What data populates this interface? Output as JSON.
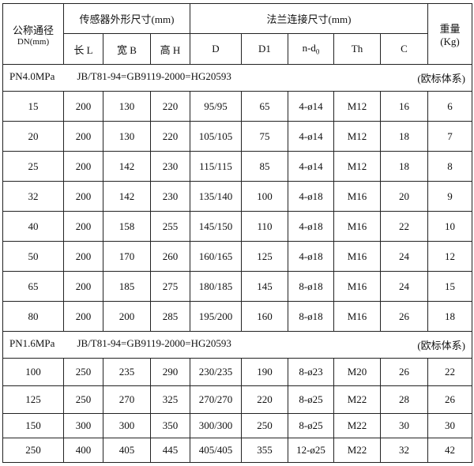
{
  "header": {
    "dn_label": "公称通径",
    "dn_unit": "DN(mm)",
    "sensor_group": "传感器外形尺寸(mm)",
    "flange_group": "法兰连接尺寸(mm)",
    "weight_label": "重量",
    "weight_unit": "(Kg)",
    "columns": [
      "长 L",
      "宽 B",
      "高 H",
      "D",
      "D1",
      "n-d",
      "Th",
      "C"
    ],
    "nd_sub": "0"
  },
  "sections": [
    {
      "pressure": "PN4.0MPa",
      "standard": "JB/T81-94=GB9119-2000=HG20593",
      "system": "(欧标体系)",
      "rows": [
        [
          "15",
          "200",
          "130",
          "220",
          "95/95",
          "65",
          "4-ø14",
          "M12",
          "16",
          "6"
        ],
        [
          "20",
          "200",
          "130",
          "220",
          "105/105",
          "75",
          "4-ø14",
          "M12",
          "18",
          "7"
        ],
        [
          "25",
          "200",
          "142",
          "230",
          "115/115",
          "85",
          "4-ø14",
          "M12",
          "18",
          "8"
        ],
        [
          "32",
          "200",
          "142",
          "230",
          "135/140",
          "100",
          "4-ø18",
          "M16",
          "20",
          "9"
        ],
        [
          "40",
          "200",
          "158",
          "255",
          "145/150",
          "110",
          "4-ø18",
          "M16",
          "22",
          "10"
        ],
        [
          "50",
          "200",
          "170",
          "260",
          "160/165",
          "125",
          "4-ø18",
          "M16",
          "24",
          "12"
        ],
        [
          "65",
          "200",
          "185",
          "275",
          "180/185",
          "145",
          "8-ø18",
          "M16",
          "24",
          "15"
        ],
        [
          "80",
          "200",
          "200",
          "285",
          "195/200",
          "160",
          "8-ø18",
          "M16",
          "26",
          "18"
        ]
      ]
    },
    {
      "pressure": "PN1.6MPa",
      "standard": "JB/T81-94=GB9119-2000=HG20593",
      "system": "(欧标体系)",
      "rows": [
        [
          "100",
          "250",
          "235",
          "290",
          "230/235",
          "190",
          "8-ø23",
          "M20",
          "26",
          "22"
        ],
        [
          "125",
          "250",
          "270",
          "325",
          "270/270",
          "220",
          "8-ø25",
          "M22",
          "28",
          "26"
        ],
        [
          "150",
          "300",
          "300",
          "350",
          "300/300",
          "250",
          "8-ø25",
          "M22",
          "30",
          "30"
        ],
        [
          "250",
          "400",
          "405",
          "445",
          "405/405",
          "355",
          "12-ø25",
          "M22",
          "32",
          "42"
        ]
      ]
    }
  ]
}
